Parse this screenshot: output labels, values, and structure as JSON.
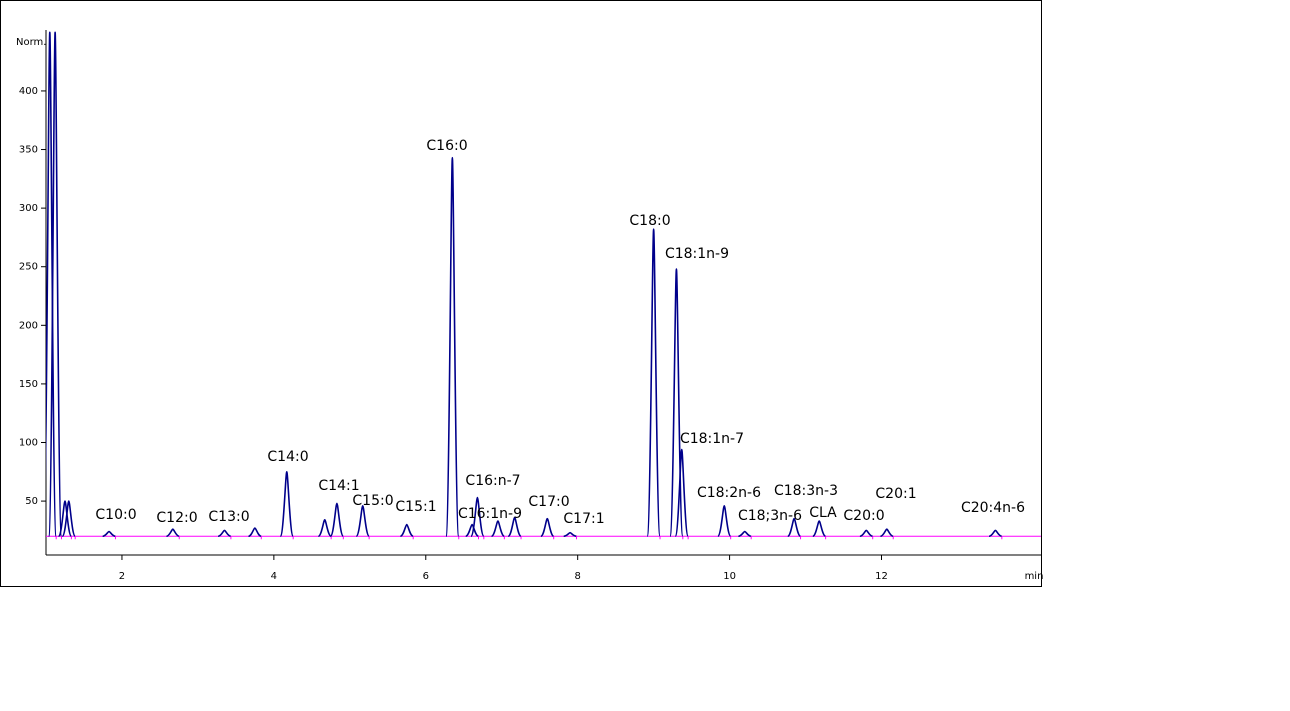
{
  "chart_data": {
    "type": "chromatogram",
    "y_axis_label": "Norm.",
    "x_axis_label": "min",
    "xlim": [
      1,
      14.1
    ],
    "ylim": [
      4,
      452
    ],
    "xticks": [
      2,
      4,
      6,
      8,
      10,
      12
    ],
    "yticks": [
      50,
      100,
      150,
      200,
      250,
      300,
      350,
      400
    ],
    "baseline": 20,
    "color": "#00008b",
    "baseline_color": "#ff00ff",
    "x": [
      1.05,
      1.12,
      1.25,
      1.3,
      1.83,
      2.67,
      3.35,
      3.75,
      4.17,
      4.67,
      4.83,
      5.17,
      5.75,
      6.35,
      6.61,
      6.68,
      6.95,
      7.17,
      7.6,
      7.9,
      9.0,
      9.3,
      9.37,
      9.93,
      10.2,
      10.85,
      11.18,
      11.8,
      12.07,
      13.5
    ],
    "values": [
      450,
      450,
      50,
      50,
      24,
      26,
      25,
      27,
      75,
      34,
      48,
      46,
      30,
      343,
      30,
      53,
      33,
      36,
      35,
      23,
      282,
      248,
      94,
      46,
      24,
      35,
      33,
      25,
      26,
      25
    ],
    "labels": [
      null,
      null,
      null,
      null,
      "C10:0",
      "C12:0",
      "C13:0",
      null,
      "C14:0",
      null,
      "C14:1",
      "C15:0",
      "C15:1",
      "C16:0",
      "C16:1n-9",
      "C16:n-7",
      null,
      null,
      "C17:0",
      "C17:1",
      "C18:0",
      "C18:1n-9",
      "C18:1n-7",
      "C18:2n-6",
      "C18;3n-6",
      "C18:3n-3",
      "CLA",
      "C20:0",
      "C20:1",
      "C20:4n-6"
    ]
  }
}
